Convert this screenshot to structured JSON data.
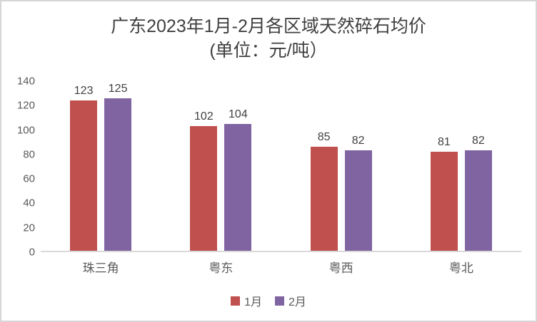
{
  "title": {
    "line1": "广东2023年1月-2月各区域天然碎石均价",
    "line2": "(单位：元/吨）"
  },
  "colors": {
    "series1": "#C0504D",
    "series2": "#8064A2",
    "axis_line": "#D9D9D9",
    "tick_text": "#595959",
    "title_text": "#3F3F3F"
  },
  "chart_data": {
    "type": "bar",
    "title": "广东2023年1月-2月各区域天然碎石均价 (单位：元/吨）",
    "categories": [
      "珠三角",
      "粤东",
      "粤西",
      "粤北"
    ],
    "series": [
      {
        "name": "1月",
        "color": "#C0504D",
        "values": [
          123,
          102,
          85,
          81
        ]
      },
      {
        "name": "2月",
        "color": "#8064A2",
        "values": [
          125,
          104,
          82,
          82
        ]
      }
    ],
    "xlabel": "",
    "ylabel": "",
    "ylim": [
      0,
      140
    ],
    "yticks": [
      0,
      20,
      40,
      60,
      80,
      100,
      120,
      140
    ],
    "grid": false,
    "data_labels": true,
    "legend_position": "bottom"
  }
}
